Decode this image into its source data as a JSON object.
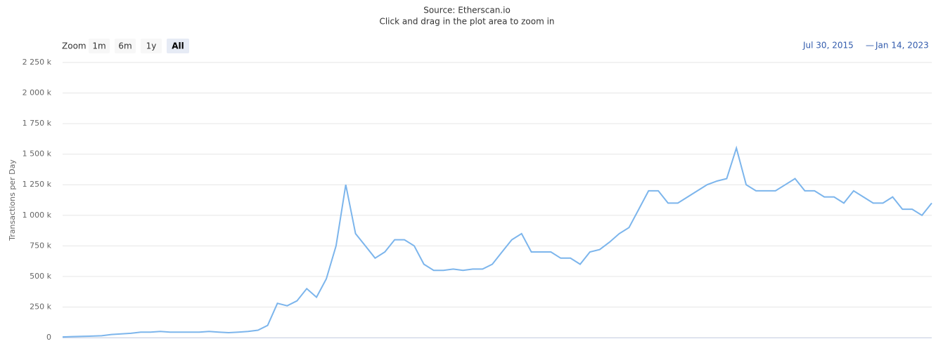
{
  "chart_data": {
    "type": "line",
    "subtitle": "Source: Etherscan.io",
    "hint": "Click and drag in the plot area to zoom in",
    "zoom_label": "Zoom",
    "zoom_buttons": [
      "1m",
      "6m",
      "1y",
      "All"
    ],
    "zoom_selected_index": 3,
    "range_from": "Jul 30, 2015",
    "range_separator": "—",
    "range_to": "Jan 14, 2023",
    "y_label": "Transactions per Day",
    "ylim": [
      0,
      2250
    ],
    "yticks": [
      {
        "value": 0,
        "label": "0"
      },
      {
        "value": 250,
        "label": "250 k"
      },
      {
        "value": 500,
        "label": "500 k"
      },
      {
        "value": 750,
        "label": "750 k"
      },
      {
        "value": 1000,
        "label": "1 000 k"
      },
      {
        "value": 1250,
        "label": "1 250 k"
      },
      {
        "value": 1500,
        "label": "1 500 k"
      },
      {
        "value": 1750,
        "label": "1 750 k"
      },
      {
        "value": 2000,
        "label": "2 000 k"
      },
      {
        "value": 2250,
        "label": "2 250 k"
      }
    ],
    "grid": true,
    "color": "#7cb5ec",
    "values": [
      5,
      8,
      10,
      12,
      15,
      25,
      30,
      35,
      45,
      45,
      50,
      45,
      45,
      45,
      45,
      50,
      45,
      40,
      45,
      50,
      60,
      100,
      280,
      260,
      300,
      400,
      330,
      480,
      750,
      1250,
      850,
      750,
      650,
      700,
      800,
      800,
      750,
      600,
      550,
      550,
      560,
      550,
      560,
      560,
      600,
      700,
      800,
      850,
      700,
      700,
      700,
      650,
      650,
      600,
      700,
      720,
      780,
      850,
      900,
      1050,
      1200,
      1200,
      1100,
      1100,
      1150,
      1200,
      1250,
      1280,
      1300,
      1550,
      1250,
      1200,
      1200,
      1200,
      1250,
      1300,
      1200,
      1200,
      1150,
      1150,
      1100,
      1200,
      1150,
      1100,
      1100,
      1150,
      1050,
      1050,
      1000,
      1100
    ]
  }
}
